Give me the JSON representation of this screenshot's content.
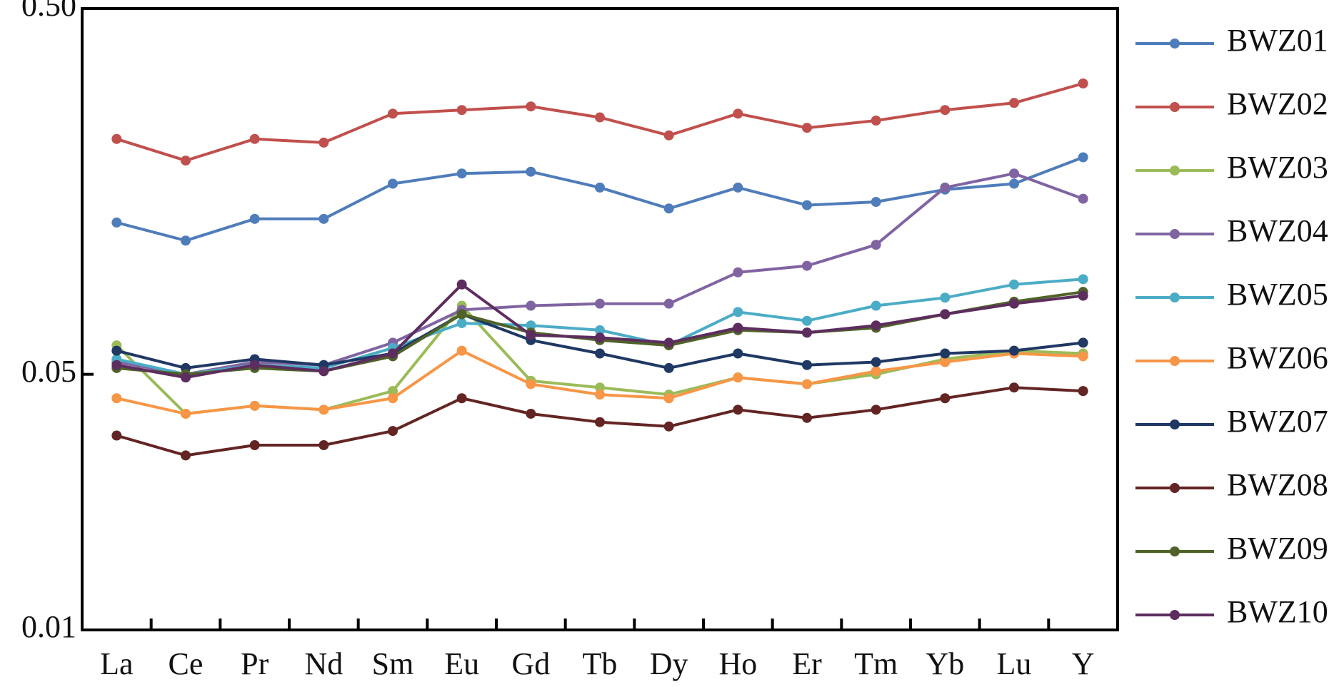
{
  "chart_data": {
    "type": "line",
    "y_scale": "log",
    "ylim": [
      0.01,
      0.5
    ],
    "yticks": [
      0.5,
      0.05,
      0.01
    ],
    "ytick_labels": [
      "0.50",
      "0.05",
      "0.01"
    ],
    "categories": [
      "La",
      "Ce",
      "Pr",
      "Nd",
      "Sm",
      "Eu",
      "Gd",
      "Tb",
      "Dy",
      "Ho",
      "Er",
      "Tm",
      "Yb",
      "Lu",
      "Y"
    ],
    "legend_position": "right",
    "grid": false,
    "series": [
      {
        "name": "BWZ01",
        "color": "#4f7cba",
        "values": [
          0.13,
          0.116,
          0.133,
          0.133,
          0.166,
          0.177,
          0.179,
          0.162,
          0.142,
          0.162,
          0.145,
          0.148,
          0.16,
          0.166,
          0.196
        ]
      },
      {
        "name": "BWZ02",
        "color": "#c0504d",
        "values": [
          0.22,
          0.192,
          0.22,
          0.215,
          0.258,
          0.264,
          0.27,
          0.252,
          0.225,
          0.258,
          0.236,
          0.247,
          0.264,
          0.276,
          0.312
        ]
      },
      {
        "name": "BWZ03",
        "color": "#9bbb59",
        "values": [
          0.06,
          0.039,
          0.041,
          0.04,
          0.045,
          0.077,
          0.048,
          0.046,
          0.044,
          0.049,
          0.047,
          0.05,
          0.055,
          0.058,
          0.057
        ]
      },
      {
        "name": "BWZ04",
        "color": "#8064a2",
        "values": [
          0.054,
          0.05,
          0.054,
          0.053,
          0.061,
          0.075,
          0.077,
          0.078,
          0.078,
          0.095,
          0.099,
          0.113,
          0.162,
          0.177,
          0.151
        ]
      },
      {
        "name": "BWZ05",
        "color": "#4bacc6",
        "values": [
          0.055,
          0.05,
          0.053,
          0.052,
          0.059,
          0.069,
          0.068,
          0.066,
          0.06,
          0.074,
          0.07,
          0.077,
          0.081,
          0.088,
          0.091
        ]
      },
      {
        "name": "BWZ06",
        "color": "#f79646",
        "values": [
          0.043,
          0.039,
          0.041,
          0.04,
          0.043,
          0.058,
          0.047,
          0.044,
          0.043,
          0.049,
          0.047,
          0.051,
          0.054,
          0.057,
          0.056
        ]
      },
      {
        "name": "BWZ07",
        "color": "#1f3864",
        "values": [
          0.058,
          0.052,
          0.055,
          0.053,
          0.057,
          0.073,
          0.062,
          0.057,
          0.052,
          0.057,
          0.053,
          0.054,
          0.057,
          0.058,
          0.061
        ]
      },
      {
        "name": "BWZ08",
        "color": "#632523",
        "values": [
          0.034,
          0.03,
          0.032,
          0.032,
          0.035,
          0.043,
          0.039,
          0.037,
          0.036,
          0.04,
          0.038,
          0.04,
          0.043,
          0.046,
          0.045
        ]
      },
      {
        "name": "BWZ09",
        "color": "#4f6228",
        "values": [
          0.052,
          0.05,
          0.052,
          0.051,
          0.056,
          0.073,
          0.065,
          0.062,
          0.06,
          0.066,
          0.065,
          0.067,
          0.073,
          0.079,
          0.084
        ]
      },
      {
        "name": "BWZ10",
        "color": "#5c2d5e",
        "values": [
          0.053,
          0.049,
          0.053,
          0.051,
          0.057,
          0.088,
          0.064,
          0.063,
          0.061,
          0.067,
          0.065,
          0.068,
          0.073,
          0.078,
          0.082
        ]
      }
    ]
  }
}
